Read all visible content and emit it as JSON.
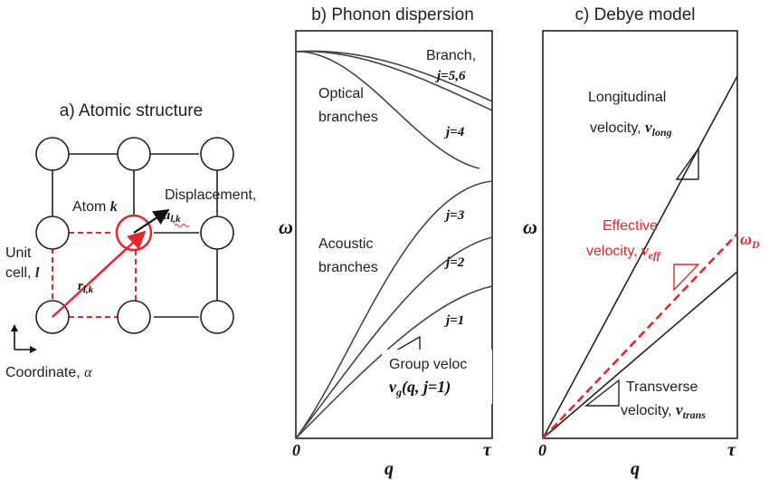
{
  "colors": {
    "ink": "#333333",
    "accent": "#e8262a",
    "background": "#ffffff"
  },
  "panel_a": {
    "title": "a) Atomic structure",
    "atom_label": "Atom",
    "atom_index": "k",
    "displacement_label": "Displacement,",
    "displacement_symbol": "u",
    "displacement_sub": "l,k",
    "unit_cell_line1": "Unit",
    "unit_cell_line2": "cell,",
    "unit_cell_index": "l",
    "position_symbol": "r",
    "position_sub": "l,k",
    "coordinate_label": "Coordinate,",
    "coordinate_symbol": "α"
  },
  "panel_b": {
    "title": "b) Phonon dispersion",
    "branch_label": "Branch,",
    "branch_j56": "j=5,6",
    "optical_line1": "Optical",
    "optical_line2": "branches",
    "branch_j4": "j=4",
    "branch_j3": "j=3",
    "branch_j2": "j=2",
    "branch_j1": "j=1",
    "acoustic_line1": "Acoustic",
    "acoustic_line2": "branches",
    "group_velocity_label": "Group veloc",
    "group_velocity_formula": "v",
    "group_velocity_sub": "g",
    "group_velocity_args": "(q, j=1)",
    "y_axis": "ω",
    "x_axis": "q",
    "x_origin": "0",
    "x_end": "τ"
  },
  "panel_c": {
    "title": "c) Debye model",
    "longitudinal_line1": "Longitudinal",
    "longitudinal_line2": "velocity,",
    "longitudinal_symbol": "v",
    "longitudinal_sub": "long",
    "effective_line1": "Effective",
    "effective_line2": "velocity,",
    "effective_symbol": "v",
    "effective_sub": "eff",
    "debye_symbol": "ω",
    "debye_sub": "D",
    "transverse_line1": "Transverse",
    "transverse_line2": "velocity,",
    "transverse_symbol": "v",
    "transverse_sub": "trans",
    "y_axis": "ω",
    "x_axis": "q",
    "x_origin": "0",
    "x_end": "τ"
  }
}
